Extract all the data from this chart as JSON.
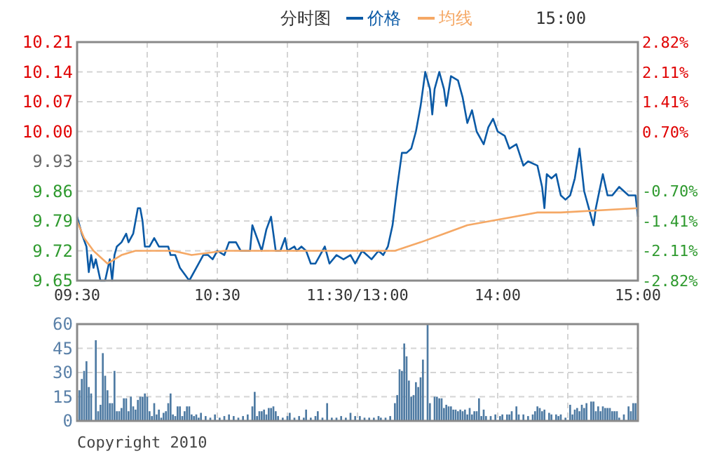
{
  "chart_data": [
    {
      "type": "line",
      "title": "分时图",
      "legend": "top",
      "grid": true,
      "annotations": [
        "15:00"
      ],
      "categories": [
        "09:30",
        null,
        null,
        null,
        null,
        null,
        null,
        null,
        null,
        null,
        null,
        null,
        null,
        null,
        null,
        null,
        null,
        null,
        null,
        null,
        null,
        null,
        null,
        null,
        null,
        null,
        null,
        null,
        null,
        null,
        null,
        null,
        null,
        null,
        null,
        null,
        null,
        null,
        null,
        null,
        null,
        null,
        null,
        null,
        null,
        null,
        null,
        null,
        null,
        null,
        null,
        null,
        null,
        null,
        null,
        null,
        null,
        null,
        null,
        null,
        "10:30",
        null,
        null,
        null,
        null,
        null,
        null,
        null,
        null,
        null,
        null,
        null,
        null,
        null,
        null,
        null,
        null,
        null,
        null,
        null,
        null,
        null,
        null,
        null,
        null,
        null,
        null,
        null,
        null,
        null,
        null,
        null,
        null,
        null,
        null,
        null,
        null,
        null,
        null,
        null,
        null,
        null,
        null,
        null,
        null,
        null,
        null,
        null,
        null,
        null,
        null,
        null,
        null,
        null,
        null,
        null,
        null,
        null,
        null,
        null,
        "11:30/13:00",
        null,
        null,
        null,
        null,
        null,
        null,
        null,
        null,
        null,
        null,
        null,
        null,
        null,
        null,
        null,
        null,
        null,
        null,
        null,
        null,
        null,
        null,
        null,
        null,
        null,
        null,
        null,
        null,
        null,
        null,
        null,
        null,
        null,
        null,
        null,
        null,
        null,
        null,
        null,
        null,
        null,
        null,
        null,
        null,
        null,
        null,
        null,
        null,
        null,
        null,
        null,
        null,
        null,
        null,
        null,
        null,
        null,
        null,
        null,
        "14:00",
        null,
        null,
        null,
        null,
        null,
        null,
        null,
        null,
        null,
        null,
        null,
        null,
        null,
        null,
        null,
        null,
        null,
        null,
        null,
        null,
        null,
        null,
        null,
        null,
        null,
        null,
        null,
        null,
        null,
        null,
        null,
        null,
        null,
        null,
        null,
        null,
        null,
        null,
        null,
        null,
        null,
        null,
        null,
        null,
        null,
        null,
        null,
        null,
        null,
        null,
        null,
        null,
        null,
        null,
        null,
        null,
        null,
        null,
        null,
        "15:00"
      ],
      "ylim": [
        9.65,
        10.21
      ],
      "yticks": [
        9.65,
        9.72,
        9.79,
        9.86,
        9.93,
        {
          "value": 10.0,
          "label": "10.00"
        },
        10.07,
        10.14,
        10.21
      ],
      "y2lim": [
        -2.82,
        2.82
      ],
      "y2ticks": [
        {
          "value": -2.82,
          "label": "-2.82%"
        },
        {
          "value": -2.11,
          "label": "-2.11%"
        },
        {
          "value": -1.41,
          "label": "-1.41%"
        },
        {
          "value": -0.7,
          "label": "-0.70%"
        },
        {
          "value": 0.7,
          "label": "0.70%"
        },
        {
          "value": 1.41,
          "label": "1.41%"
        },
        {
          "value": 2.11,
          "label": "2.11%"
        },
        {
          "value": 2.82,
          "label": "2.82%"
        }
      ],
      "series": [
        {
          "name": "价格",
          "color": "#0b5aa6",
          "values": [
            9.8,
            null,
            9.76,
            null,
            9.73,
            9.67,
            9.71,
            9.68,
            9.7,
            null,
            9.65,
            null,
            9.65,
            null,
            9.7,
            9.65,
            9.71,
            9.73,
            null,
            9.74,
            null,
            9.76,
            9.74,
            null,
            9.76,
            null,
            9.82,
            9.82,
            9.79,
            9.73,
            null,
            9.73,
            null,
            9.75,
            null,
            9.73,
            null,
            9.73,
            null,
            9.73,
            9.71,
            null,
            9.71,
            null,
            9.68,
            null,
            null,
            null,
            9.65,
            null,
            null,
            9.68,
            null,
            null,
            9.71,
            null,
            9.71,
            null,
            9.7,
            null,
            9.72,
            null,
            null,
            9.71,
            null,
            9.74,
            null,
            null,
            9.74,
            null,
            9.72,
            null,
            null,
            null,
            9.72,
            9.78,
            null,
            9.75,
            null,
            9.72,
            null,
            9.77,
            null,
            9.8,
            null,
            9.72,
            null,
            9.72,
            null,
            9.75,
            9.72,
            null,
            null,
            9.73,
            9.72,
            null,
            9.73,
            null,
            9.72,
            null,
            9.69,
            null,
            9.69,
            null,
            9.71,
            null,
            9.73,
            null,
            9.69,
            null,
            null,
            9.71,
            null,
            null,
            9.7,
            null,
            null,
            9.71,
            null,
            9.69,
            null,
            null,
            9.72,
            null,
            9.71,
            null,
            9.7,
            null,
            null,
            9.72,
            null,
            9.71,
            null,
            9.73,
            null,
            9.78,
            null,
            9.87,
            null,
            9.95,
            null,
            9.95,
            null,
            9.96,
            null,
            10.0,
            null,
            10.06,
            null,
            10.14,
            null,
            10.1,
            10.04,
            10.1,
            null,
            10.14,
            null,
            10.1,
            10.06,
            null,
            10.13,
            null,
            null,
            10.12,
            null,
            10.08,
            null,
            10.02,
            null,
            10.05,
            null,
            10.0,
            null,
            null,
            9.97,
            null,
            10.01,
            null,
            10.03,
            null,
            10.0,
            null,
            null,
            9.99,
            null,
            9.96,
            null,
            null,
            9.97,
            null,
            null,
            9.92,
            null,
            9.93,
            null,
            null,
            null,
            9.92,
            null,
            9.87,
            9.82,
            9.9,
            null,
            9.89,
            null,
            9.9,
            null,
            9.85,
            null,
            9.84,
            null,
            9.85,
            null,
            9.89,
            null,
            9.96,
            null,
            9.86,
            null,
            9.82,
            null,
            9.78,
            9.82,
            null,
            null,
            9.9,
            null,
            9.85,
            null,
            9.85,
            null,
            null,
            9.87,
            null,
            9.86,
            null,
            9.85,
            null,
            null,
            9.85,
            9.8
          ]
        },
        {
          "name": "均线",
          "color": "#f5a865",
          "values": [
            9.79,
            null,
            null,
            9.75,
            null,
            null,
            null,
            9.72,
            null,
            null,
            null,
            null,
            null,
            9.69,
            null,
            null,
            null,
            null,
            null,
            9.71,
            null,
            null,
            null,
            null,
            null,
            9.72,
            null,
            null,
            null,
            null,
            9.72,
            null,
            null,
            null,
            null,
            null,
            null,
            null,
            null,
            null,
            null,
            9.72,
            null,
            null,
            null,
            null,
            null,
            null,
            null,
            9.71,
            null,
            null,
            null,
            null,
            null,
            null,
            null,
            null,
            null,
            null,
            null,
            null,
            null,
            9.72,
            null,
            null,
            null,
            null,
            null,
            null,
            null,
            null,
            null,
            null,
            null,
            null,
            null,
            null,
            null,
            null,
            null,
            9.72,
            null,
            null,
            null,
            null,
            null,
            null,
            null,
            null,
            null,
            null,
            null,
            null,
            null,
            null,
            null,
            null,
            null,
            null,
            null,
            null,
            null,
            null,
            null,
            null,
            null,
            9.72,
            null,
            null,
            null,
            null,
            null,
            null,
            null,
            null,
            null,
            null,
            null,
            null,
            null,
            null,
            9.72,
            null,
            null,
            null,
            null,
            null,
            null,
            null,
            null,
            null,
            null,
            null,
            null,
            null,
            9.72,
            null,
            null,
            null,
            null,
            null,
            null,
            null,
            null,
            null,
            null,
            9.74,
            null,
            null,
            null,
            null,
            null,
            null,
            null,
            null,
            null,
            9.76,
            null,
            null,
            null,
            null,
            null,
            null,
            null,
            null,
            null,
            9.78,
            null,
            null,
            null,
            null,
            null,
            null,
            null,
            null,
            null,
            9.79,
            null,
            null,
            null,
            null,
            null,
            null,
            null,
            null,
            null,
            9.8,
            null,
            null,
            null,
            null,
            null,
            null,
            null,
            null,
            null,
            9.81,
            null,
            null,
            null,
            null,
            null,
            null,
            null,
            null,
            null,
            9.81,
            null,
            null,
            null,
            null,
            null,
            null,
            null,
            null,
            null,
            null,
            null,
            null,
            null,
            null,
            null,
            null,
            null,
            null,
            null,
            null,
            null,
            null,
            null,
            null,
            null,
            null,
            null,
            null,
            null,
            null,
            null,
            null,
            9.82
          ]
        }
      ]
    },
    {
      "type": "bar",
      "grid": true,
      "tick_labels": "y",
      "annotations": [
        "Copyright 2010"
      ],
      "categories": [
        null,
        null,
        null,
        null,
        null,
        null,
        null,
        null,
        null,
        null,
        null,
        null,
        null,
        null,
        null,
        null,
        null,
        null,
        null,
        null,
        null,
        null,
        null,
        null,
        null,
        null,
        null,
        null,
        null,
        null,
        null,
        null,
        null,
        null,
        null,
        null,
        null,
        null,
        null,
        null,
        null,
        null,
        null,
        null,
        null,
        null,
        null,
        null,
        null,
        null,
        null,
        null,
        null,
        null,
        null,
        null,
        null,
        null,
        null,
        null,
        null,
        null,
        null,
        null,
        null,
        null,
        null,
        null,
        null,
        null,
        null,
        null,
        null,
        null,
        null,
        null,
        null,
        null,
        null,
        null,
        null,
        null,
        null,
        null,
        null,
        null,
        null,
        null,
        null,
        null,
        null,
        null,
        null,
        null,
        null,
        null,
        null,
        null,
        null,
        null,
        null,
        null,
        null,
        null,
        null,
        null,
        null,
        null,
        null,
        null,
        null,
        null,
        null,
        null,
        null,
        null,
        null,
        null,
        null,
        null,
        null,
        null,
        null,
        null,
        null,
        null,
        null,
        null,
        null,
        null,
        null,
        null,
        null,
        null,
        null,
        null,
        null,
        null,
        null,
        null,
        null,
        null,
        null,
        null,
        null,
        null,
        null,
        null,
        null,
        null,
        null,
        null,
        null,
        null,
        null,
        null,
        null,
        null,
        null,
        null,
        null,
        null,
        null,
        null,
        null,
        null,
        null,
        null,
        null,
        null,
        null,
        null,
        null,
        null,
        null,
        null,
        null,
        null,
        null,
        null,
        null,
        null,
        null,
        null,
        null,
        null,
        null,
        null,
        null,
        null,
        null,
        null,
        null,
        null,
        null,
        null,
        null,
        null,
        null,
        null,
        null,
        null,
        null,
        null,
        null,
        null,
        null,
        null,
        null,
        null,
        null,
        null,
        null,
        null,
        null,
        null,
        null,
        null,
        null,
        null,
        null,
        null,
        null,
        null,
        null,
        null,
        null,
        null,
        null,
        null,
        null,
        null,
        null,
        null,
        null,
        null,
        null,
        null,
        null,
        null,
        null
      ],
      "ylim": [
        0,
        60
      ],
      "yticks": [
        0,
        15,
        30,
        45,
        60
      ],
      "series": [
        {
          "color": "#4f7ba3",
          "values": [
            null,
            19,
            26,
            31,
            37,
            21,
            17,
            null,
            50,
            6,
            10,
            42,
            28,
            19,
            11,
            11,
            31,
            6,
            6,
            8,
            14,
            14,
            6,
            15,
            9,
            7,
            13,
            15,
            15,
            17,
            15,
            6,
            3,
            11,
            4,
            7,
            2,
            5,
            6,
            11,
            17,
            4,
            3,
            9,
            9,
            3,
            6,
            9,
            9,
            4,
            3,
            4,
            2,
            5,
            null,
            3,
            null,
            2,
            null,
            4,
            null,
            2,
            null,
            3,
            null,
            4,
            null,
            3,
            null,
            2,
            null,
            3,
            null,
            4,
            null,
            9,
            18,
            3,
            6,
            6,
            7,
            4,
            8,
            8,
            9,
            6,
            3,
            null,
            2,
            null,
            3,
            5,
            null,
            2,
            null,
            3,
            null,
            2,
            7,
            null,
            2,
            null,
            3,
            6,
            null,
            2,
            null,
            11,
            null,
            2,
            null,
            2,
            null,
            3,
            null,
            2,
            null,
            5,
            null,
            3,
            null,
            3,
            null,
            2,
            null,
            2,
            null,
            2,
            null,
            3,
            2,
            null,
            2,
            null,
            3,
            null,
            11,
            16,
            32,
            31,
            48,
            40,
            25,
            15,
            16,
            24,
            21,
            27,
            38,
            null,
            60,
            11,
            null,
            15,
            15,
            14,
            14,
            8,
            10,
            9,
            9,
            7,
            7,
            6,
            7,
            6,
            7,
            4,
            8,
            4,
            6,
            6,
            14,
            3,
            7,
            3,
            null,
            3,
            null,
            4,
            null,
            3,
            4,
            null,
            4,
            4,
            6,
            null,
            9,
            4,
            null,
            4,
            null,
            3,
            null,
            4,
            6,
            9,
            8,
            6,
            7,
            null,
            5,
            4,
            null,
            4,
            3,
            4,
            null,
            2,
            null,
            10,
            4,
            7,
            8,
            6,
            10,
            8,
            11,
            null,
            12,
            12,
            6,
            9,
            6,
            9,
            8,
            8,
            8,
            6,
            6,
            6,
            2,
            null,
            4,
            null,
            9,
            6,
            11,
            11,
            null
          ]
        }
      ]
    }
  ]
}
